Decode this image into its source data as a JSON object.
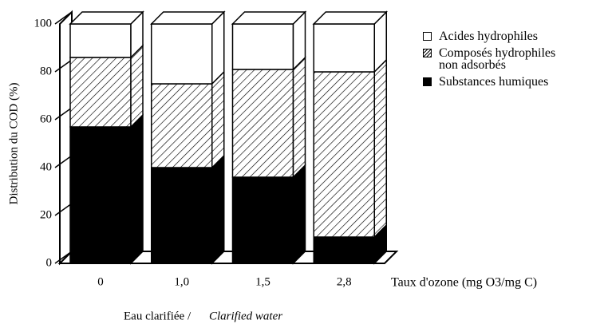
{
  "chart_data": {
    "type": "stacked_bar_3d",
    "ylabel": "Distribution du COD (%)",
    "xlabel": "Taux d'ozone (mg O3/mg C)",
    "caption": "Eau clarifiée /",
    "caption_en": "Clarified water",
    "categories": [
      "0",
      "1,0",
      "1,5",
      "2,8"
    ],
    "series": [
      {
        "name": "Substances humiques",
        "color": "#000000",
        "hatch": false,
        "values": [
          57,
          40,
          36,
          11
        ]
      },
      {
        "name": "Composés hydrophiles non adsorbés",
        "color": "#ffffff",
        "hatch": true,
        "values": [
          29,
          35,
          45,
          69
        ]
      },
      {
        "name": "Acides hydrophiles",
        "color": "#ffffff",
        "hatch": false,
        "values": [
          14,
          25,
          19,
          20
        ]
      }
    ],
    "ylim": [
      0,
      100
    ],
    "yticks": [
      0,
      20,
      40,
      60,
      80,
      100
    ]
  }
}
